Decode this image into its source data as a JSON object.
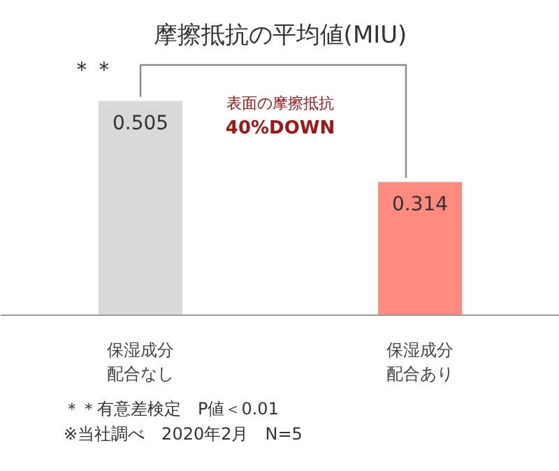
{
  "chart_data": {
    "type": "bar",
    "title": "摩擦抵抗の平均値(MIU)",
    "categories": [
      "保湿成分配合なし",
      "保湿成分配合あり"
    ],
    "values": [
      0.505,
      0.314
    ],
    "colors": [
      "#d9d9d9",
      "#ff8a80"
    ],
    "data_labels": true,
    "annotations": [
      "＊＊",
      "表面の摩擦抵抗",
      "40%DOWN",
      "＊＊有意差検定　P値＜0.01",
      "※当社調べ　2020年2月　N=5"
    ]
  }
}
